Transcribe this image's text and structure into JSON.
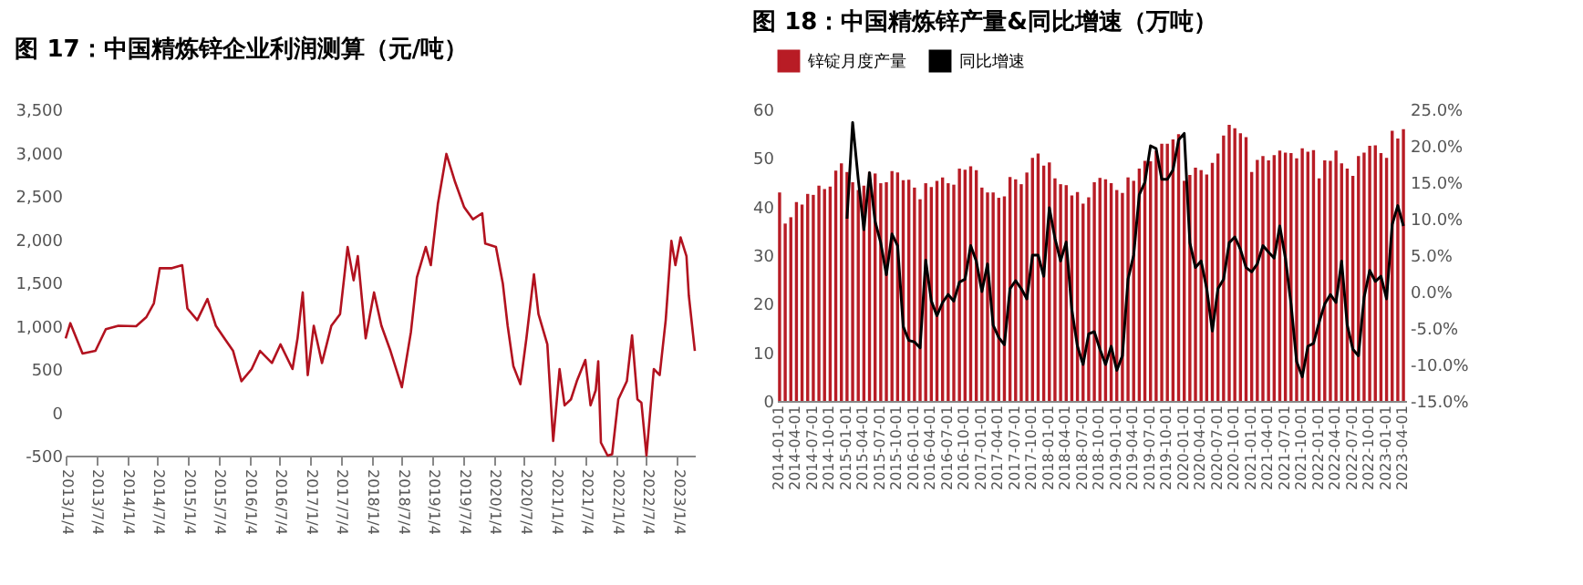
{
  "chart_data": [
    {
      "type": "line",
      "title": "图 17：中国精炼锌企业利润测算（元/吨）",
      "x": [
        "2013-01-04",
        "2013-02-01",
        "2013-04-15",
        "2013-07-01",
        "2013-09-01",
        "2013-11-15",
        "2014-03-01",
        "2014-05-01",
        "2014-06-15",
        "2014-07-20",
        "2014-10-01",
        "2014-12-01",
        "2015-01-01",
        "2015-03-01",
        "2015-05-01",
        "2015-06-20",
        "2015-08-10",
        "2015-10-01",
        "2015-11-20",
        "2016-01-20",
        "2016-03-10",
        "2016-05-20",
        "2016-07-10",
        "2016-09-20",
        "2016-10-20",
        "2016-11-20",
        "2016-12-20",
        "2017-01-25",
        "2017-03-15",
        "2017-05-10",
        "2017-07-01",
        "2017-08-15",
        "2017-09-20",
        "2017-10-15",
        "2017-12-01",
        "2018-01-20",
        "2018-03-05",
        "2018-04-28",
        "2018-07-05",
        "2018-08-28",
        "2018-10-03",
        "2018-11-25",
        "2018-12-25",
        "2019-02-05",
        "2019-03-28",
        "2019-05-20",
        "2019-07-12",
        "2019-09-03",
        "2019-10-28",
        "2019-11-15",
        "2020-01-18",
        "2020-02-28",
        "2020-03-28",
        "2020-05-01",
        "2020-06-12",
        "2020-07-18",
        "2020-09-01",
        "2020-09-28",
        "2020-11-20",
        "2020-12-25",
        "2021-02-01",
        "2021-03-03",
        "2021-04-10",
        "2021-05-15",
        "2021-07-05",
        "2021-08-05",
        "2021-09-05",
        "2021-09-20",
        "2021-10-06",
        "2021-11-15",
        "2021-12-12",
        "2022-01-18",
        "2022-03-10",
        "2022-04-10",
        "2022-05-12",
        "2022-06-05",
        "2022-07-05",
        "2022-08-18",
        "2022-09-22",
        "2022-10-28",
        "2022-12-01",
        "2022-12-25",
        "2023-01-25",
        "2023-03-01",
        "2023-03-15",
        "2023-04-20"
      ],
      "series": [
        {
          "color": "#b2121f",
          "values": [
            855,
            1030,
            680,
            710,
            960,
            1000,
            995,
            1100,
            1260,
            1665,
            1665,
            1700,
            1200,
            1065,
            1310,
            1000,
            855,
            710,
            360,
            500,
            710,
            570,
            785,
            500,
            855,
            1385,
            430,
            1000,
            570,
            1000,
            1135,
            1910,
            1525,
            1805,
            855,
            1385,
            1000,
            710,
            290,
            925,
            1560,
            1910,
            1700,
            2405,
            2985,
            2655,
            2370,
            2230,
            2300,
            1950,
            1910,
            1490,
            1000,
            535,
            325,
            855,
            1595,
            1135,
            785,
            -330,
            500,
            80,
            150,
            360,
            605,
            80,
            255,
            590,
            -350,
            -500,
            -485,
            150,
            360,
            890,
            150,
            110,
            -500,
            500,
            430,
            1065,
            1980,
            1700,
            2020,
            1805,
            1350,
            710
          ]
        }
      ],
      "xlim": [
        "2013-01-04",
        "2023-04-20"
      ],
      "xticks": [
        {
          "value": "2013-01-04",
          "label": "2013/1/4"
        },
        {
          "value": "2013-07-04",
          "label": "2013/7/4"
        },
        {
          "value": "2014-01-04",
          "label": "2014/1/4"
        },
        {
          "value": "2014-07-04",
          "label": "2014/7/4"
        },
        {
          "value": "2015-01-04",
          "label": "2015/1/4"
        },
        {
          "value": "2015-07-04",
          "label": "2015/7/4"
        },
        {
          "value": "2016-01-04",
          "label": "2016/1/4"
        },
        {
          "value": "2016-07-04",
          "label": "2016/7/4"
        },
        {
          "value": "2017-01-04",
          "label": "2017/1/4"
        },
        {
          "value": "2017-07-04",
          "label": "2017/7/4"
        },
        {
          "value": "2018-01-04",
          "label": "2018/1/4"
        },
        {
          "value": "2018-07-04",
          "label": "2018/7/4"
        },
        {
          "value": "2019-01-04",
          "label": "2019/1/4"
        },
        {
          "value": "2019-07-04",
          "label": "2019/7/4"
        },
        {
          "value": "2020-01-04",
          "label": "2020/1/4"
        },
        {
          "value": "2020-07-04",
          "label": "2020/7/4"
        },
        {
          "value": "2021-01-04",
          "label": "2021/1/4"
        },
        {
          "value": "2021-07-04",
          "label": "2021/7/4"
        },
        {
          "value": "2022-01-04",
          "label": "2022/1/4"
        },
        {
          "value": "2022-07-04",
          "label": "2022/7/4"
        },
        {
          "value": "2023-01-04",
          "label": "2023/1/4"
        }
      ],
      "ylim": [
        -500,
        3500
      ],
      "yticks": [
        {
          "value": -500,
          "label": "-500"
        },
        {
          "value": 0,
          "label": "0"
        },
        {
          "value": 500,
          "label": "500"
        },
        {
          "value": 1000,
          "label": "1,000"
        },
        {
          "value": 1500,
          "label": "1,500"
        },
        {
          "value": 2000,
          "label": "2,000"
        },
        {
          "value": 2500,
          "label": "2,500"
        },
        {
          "value": 3000,
          "label": "3,000"
        },
        {
          "value": 3500,
          "label": "3,500"
        }
      ]
    },
    {
      "type": "bar",
      "title": "图 18：中国精炼锌产量&同比增速（万吨）",
      "categories": [
        "2014-01-01",
        null,
        null,
        "2014-04-01",
        null,
        null,
        "2014-07-01",
        null,
        null,
        "2014-10-01",
        null,
        null,
        "2015-01-01",
        null,
        null,
        "2015-04-01",
        null,
        null,
        "2015-07-01",
        null,
        null,
        "2015-10-01",
        null,
        null,
        "2016-01-01",
        null,
        null,
        "2016-04-01",
        null,
        null,
        "2016-07-01",
        null,
        null,
        "2016-10-01",
        null,
        null,
        "2017-01-01",
        null,
        null,
        "2017-04-01",
        null,
        null,
        "2017-07-01",
        null,
        null,
        "2017-10-01",
        null,
        null,
        "2018-01-01",
        null,
        null,
        "2018-04-01",
        null,
        null,
        "2018-07-01",
        null,
        null,
        "2018-10-01",
        null,
        null,
        "2019-01-01",
        null,
        null,
        "2019-04-01",
        null,
        null,
        "2019-07-01",
        null,
        null,
        "2019-10-01",
        null,
        null,
        "2020-01-01",
        null,
        null,
        "2020-04-01",
        null,
        null,
        "2020-07-01",
        null,
        null,
        "2020-10-01",
        null,
        null,
        "2021-01-01",
        null,
        null,
        "2021-04-01",
        null,
        null,
        "2021-07-01",
        null,
        null,
        "2021-10-01",
        null,
        null,
        "2022-01-01",
        null,
        null,
        "2022-04-01",
        null,
        null,
        "2022-07-01",
        null,
        null,
        "2022-10-01",
        null,
        null,
        "2023-01-01",
        null,
        null,
        "2023-04-01"
      ],
      "series": [
        {
          "name": "锌锭月度产量",
          "color": "#b81c25",
          "values": [
            42.9,
            36.5,
            37.8,
            40.9,
            40.4,
            42.6,
            42.4,
            44.3,
            43.6,
            44.1,
            47.4,
            48.9,
            47.1,
            45,
            43.4,
            44.3,
            47.1,
            46.8,
            44.8,
            45,
            47.3,
            47,
            45.4,
            45.5,
            43.9,
            41.5,
            44.8,
            44,
            45.3,
            46,
            44.8,
            44.5,
            47.8,
            47.6,
            48.3,
            47.5,
            43.9,
            42.9,
            42.9,
            41.8,
            42.1,
            46.1,
            45.6,
            44.6,
            47,
            50,
            50.9,
            48.4,
            49.1,
            45.8,
            44.6,
            44.4,
            42.3,
            43,
            40.6,
            41.9,
            45,
            45.9,
            45.6,
            44.8,
            43.4,
            42.8,
            46,
            45.3,
            47.8,
            49.4,
            49.3,
            51.5,
            52.9,
            52.9,
            53.8,
            54.9,
            45.3,
            46.5,
            48,
            47.5,
            46.6,
            49,
            50.9,
            54.6,
            56.8,
            56.1,
            55.1,
            54.3,
            47.1,
            49.6,
            50.4,
            49.5,
            50.6,
            51.5,
            51.1,
            51,
            49.9,
            52,
            51.3,
            51.6,
            45.8,
            49.5,
            49.4,
            51.5,
            48.9,
            47.8,
            46.3,
            50.4,
            51.1,
            52.5,
            52.6,
            51,
            50,
            55.6,
            54,
            55.9
          ]
        },
        {
          "name": "同比增速",
          "type": "line",
          "axis": "y2",
          "color": "#000000",
          "values": [
            null,
            null,
            null,
            null,
            null,
            null,
            null,
            null,
            null,
            null,
            null,
            null,
            10,
            23.2,
            15.4,
            8.5,
            16.3,
            9.6,
            6.7,
            2.3,
            7.9,
            6.3,
            -4.8,
            -6.7,
            -6.9,
            -7.7,
            4.3,
            -1.3,
            -3.3,
            -1.5,
            -0.4,
            -1.3,
            1.3,
            1.7,
            6.3,
            4.2,
            0,
            3.8,
            -4.6,
            -6.3,
            -7.3,
            0.4,
            1.5,
            0.4,
            -1,
            5,
            5,
            2.1,
            11.5,
            7.3,
            4.2,
            6.8,
            -2.5,
            -7.5,
            -10,
            -5.8,
            -5.5,
            -7.9,
            -10,
            -7.5,
            -10.8,
            -8.8,
            1.7,
            5,
            13.3,
            15,
            20,
            19.6,
            15.4,
            15.4,
            16.7,
            20.8,
            21.7,
            6.7,
            3.3,
            4.2,
            0.4,
            -5.4,
            0.4,
            1.7,
            6.7,
            7.5,
            5.8,
            3.3,
            2.7,
            3.8,
            6.3,
            5.4,
            4.6,
            9,
            4.6,
            -1.7,
            -9.6,
            -11.7,
            -7.5,
            -7.1,
            -4.2,
            -1.7,
            -0.4,
            -1.5,
            4.2,
            -4.6,
            -7.9,
            -8.8,
            -0.8,
            2.9,
            1.4,
            2.1,
            -1,
            9.2,
            11.8,
            9
          ]
        }
      ],
      "ylim": [
        0,
        60
      ],
      "yticks": [
        0,
        10,
        20,
        30,
        40,
        50,
        60
      ],
      "y2lim": [
        -15,
        25
      ],
      "y2ticks": [
        {
          "value": -15,
          "label": "-15.0%"
        },
        {
          "value": -10,
          "label": "-10.0%"
        },
        {
          "value": -5,
          "label": "-5.0%"
        },
        {
          "value": 0,
          "label": "0.0%"
        },
        {
          "value": 5,
          "label": "5.0%"
        },
        {
          "value": 10,
          "label": "10.0%"
        },
        {
          "value": 15,
          "label": "15.0%"
        },
        {
          "value": 20,
          "label": "20.0%"
        },
        {
          "value": 25,
          "label": "25.0%"
        }
      ],
      "legend": "top"
    }
  ]
}
